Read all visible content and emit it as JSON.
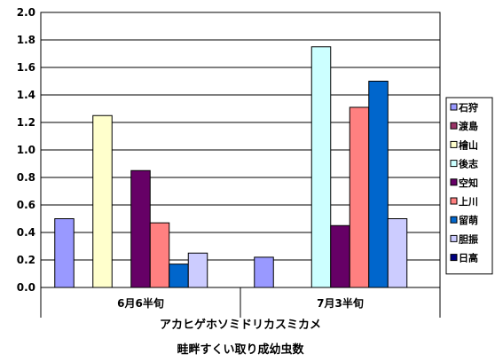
{
  "chart_data": {
    "type": "bar",
    "categories": [
      "6月6半旬",
      "7月3半旬"
    ],
    "series": [
      {
        "name": "石狩",
        "color": "#9999ff",
        "values": [
          0.5,
          0.22
        ]
      },
      {
        "name": "渡島",
        "color": "#993366",
        "values": [
          null,
          null
        ]
      },
      {
        "name": "檜山",
        "color": "#ffffcc",
        "values": [
          1.25,
          null
        ]
      },
      {
        "name": "後志",
        "color": "#ccffff",
        "values": [
          null,
          1.75
        ]
      },
      {
        "name": "空知",
        "color": "#660066",
        "values": [
          0.85,
          0.45
        ]
      },
      {
        "name": "上川",
        "color": "#ff8080",
        "values": [
          0.47,
          1.31
        ]
      },
      {
        "name": "留萌",
        "color": "#0066cc",
        "values": [
          0.17,
          1.5
        ]
      },
      {
        "name": "胆振",
        "color": "#ccccff",
        "values": [
          0.25,
          0.5
        ]
      },
      {
        "name": "日高",
        "color": "#000080",
        "values": [
          null,
          null
        ]
      }
    ],
    "yticks": [
      "0.0",
      "0.2",
      "0.4",
      "0.6",
      "0.8",
      "1.0",
      "1.2",
      "1.4",
      "1.6",
      "1.8",
      "2.0"
    ],
    "ylim": [
      0,
      2
    ],
    "grid": true,
    "legend": "right",
    "xlabel_lines": [
      "アカヒゲホソミドリカスミカメ",
      "畦畔すくい取り成幼虫数"
    ]
  }
}
